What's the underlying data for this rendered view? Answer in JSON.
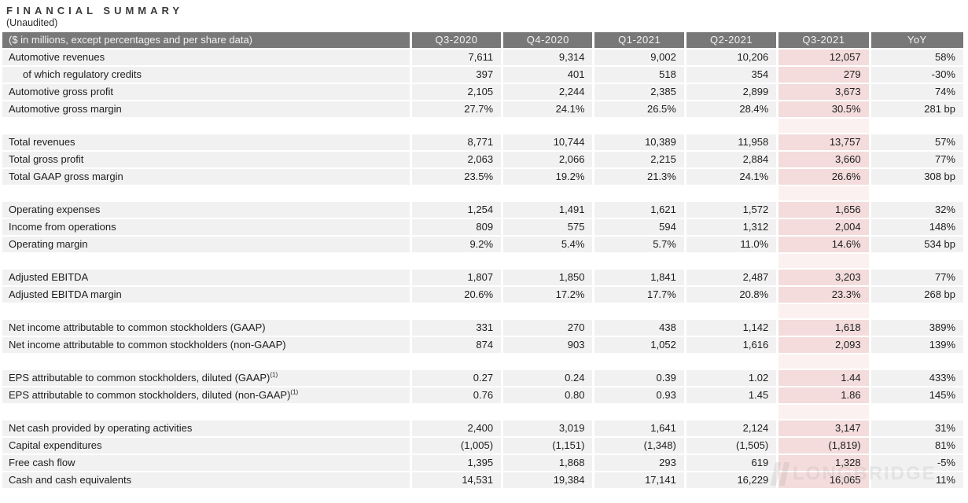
{
  "title": "FINANCIAL SUMMARY",
  "subtitle": "(Unaudited)",
  "watermark": "LONGBRIDGE",
  "colors": {
    "header_bg": "#787878",
    "header_text": "#f2f2f2",
    "row_bg": "#f1f1f1",
    "highlight_bg": "#f3dcdb",
    "highlight_spacer_bg": "#fbf1f0",
    "text": "#1d1d1d"
  },
  "table": {
    "label_header": "($ in millions, except percentages and per share data)",
    "columns": [
      "Q3-2020",
      "Q4-2020",
      "Q1-2021",
      "Q2-2021",
      "Q3-2021",
      "YoY"
    ],
    "highlight_column": "Q3-2021",
    "sections": [
      {
        "rows": [
          {
            "label": "Automotive revenues",
            "values": [
              "7,611",
              "9,314",
              "9,002",
              "10,206",
              "12,057",
              "58%"
            ]
          },
          {
            "label": "of which regulatory credits",
            "indent": true,
            "values": [
              "397",
              "401",
              "518",
              "354",
              "279",
              "-30%"
            ]
          },
          {
            "label": "Automotive gross profit",
            "values": [
              "2,105",
              "2,244",
              "2,385",
              "2,899",
              "3,673",
              "74%"
            ]
          },
          {
            "label": "Automotive gross margin",
            "values": [
              "27.7%",
              "24.1%",
              "26.5%",
              "28.4%",
              "30.5%",
              "281 bp"
            ]
          }
        ]
      },
      {
        "rows": [
          {
            "label": "Total revenues",
            "values": [
              "8,771",
              "10,744",
              "10,389",
              "11,958",
              "13,757",
              "57%"
            ]
          },
          {
            "label": "Total gross profit",
            "values": [
              "2,063",
              "2,066",
              "2,215",
              "2,884",
              "3,660",
              "77%"
            ]
          },
          {
            "label": "Total GAAP gross margin",
            "values": [
              "23.5%",
              "19.2%",
              "21.3%",
              "24.1%",
              "26.6%",
              "308 bp"
            ]
          }
        ]
      },
      {
        "rows": [
          {
            "label": "Operating expenses",
            "values": [
              "1,254",
              "1,491",
              "1,621",
              "1,572",
              "1,656",
              "32%"
            ]
          },
          {
            "label": "Income from operations",
            "values": [
              "809",
              "575",
              "594",
              "1,312",
              "2,004",
              "148%"
            ]
          },
          {
            "label": "Operating margin",
            "values": [
              "9.2%",
              "5.4%",
              "5.7%",
              "11.0%",
              "14.6%",
              "534 bp"
            ]
          }
        ]
      },
      {
        "rows": [
          {
            "label": "Adjusted EBITDA",
            "values": [
              "1,807",
              "1,850",
              "1,841",
              "2,487",
              "3,203",
              "77%"
            ]
          },
          {
            "label": "Adjusted EBITDA margin",
            "values": [
              "20.6%",
              "17.2%",
              "17.7%",
              "20.8%",
              "23.3%",
              "268 bp"
            ]
          }
        ]
      },
      {
        "rows": [
          {
            "label": "Net income attributable to common stockholders (GAAP)",
            "values": [
              "331",
              "270",
              "438",
              "1,142",
              "1,618",
              "389%"
            ]
          },
          {
            "label": "Net income attributable to common stockholders (non-GAAP)",
            "values": [
              "874",
              "903",
              "1,052",
              "1,616",
              "2,093",
              "139%"
            ]
          }
        ]
      },
      {
        "rows": [
          {
            "label": "EPS attributable to common stockholders, diluted (GAAP)",
            "sup": "(1)",
            "values": [
              "0.27",
              "0.24",
              "0.39",
              "1.02",
              "1.44",
              "433%"
            ]
          },
          {
            "label": "EPS attributable to common stockholders, diluted (non-GAAP)",
            "sup": "(1)",
            "values": [
              "0.76",
              "0.80",
              "0.93",
              "1.45",
              "1.86",
              "145%"
            ]
          }
        ]
      },
      {
        "rows": [
          {
            "label": "Net cash provided by operating activities",
            "values": [
              "2,400",
              "3,019",
              "1,641",
              "2,124",
              "3,147",
              "31%"
            ]
          },
          {
            "label": "Capital expenditures",
            "values": [
              "(1,005)",
              "(1,151)",
              "(1,348)",
              "(1,505)",
              "(1,819)",
              "81%"
            ]
          },
          {
            "label": "Free cash flow",
            "values": [
              "1,395",
              "1,868",
              "293",
              "619",
              "1,328",
              "-5%"
            ]
          },
          {
            "label": "Cash and cash equivalents",
            "values": [
              "14,531",
              "19,384",
              "17,141",
              "16,229",
              "16,065",
              "11%"
            ]
          }
        ]
      }
    ]
  }
}
